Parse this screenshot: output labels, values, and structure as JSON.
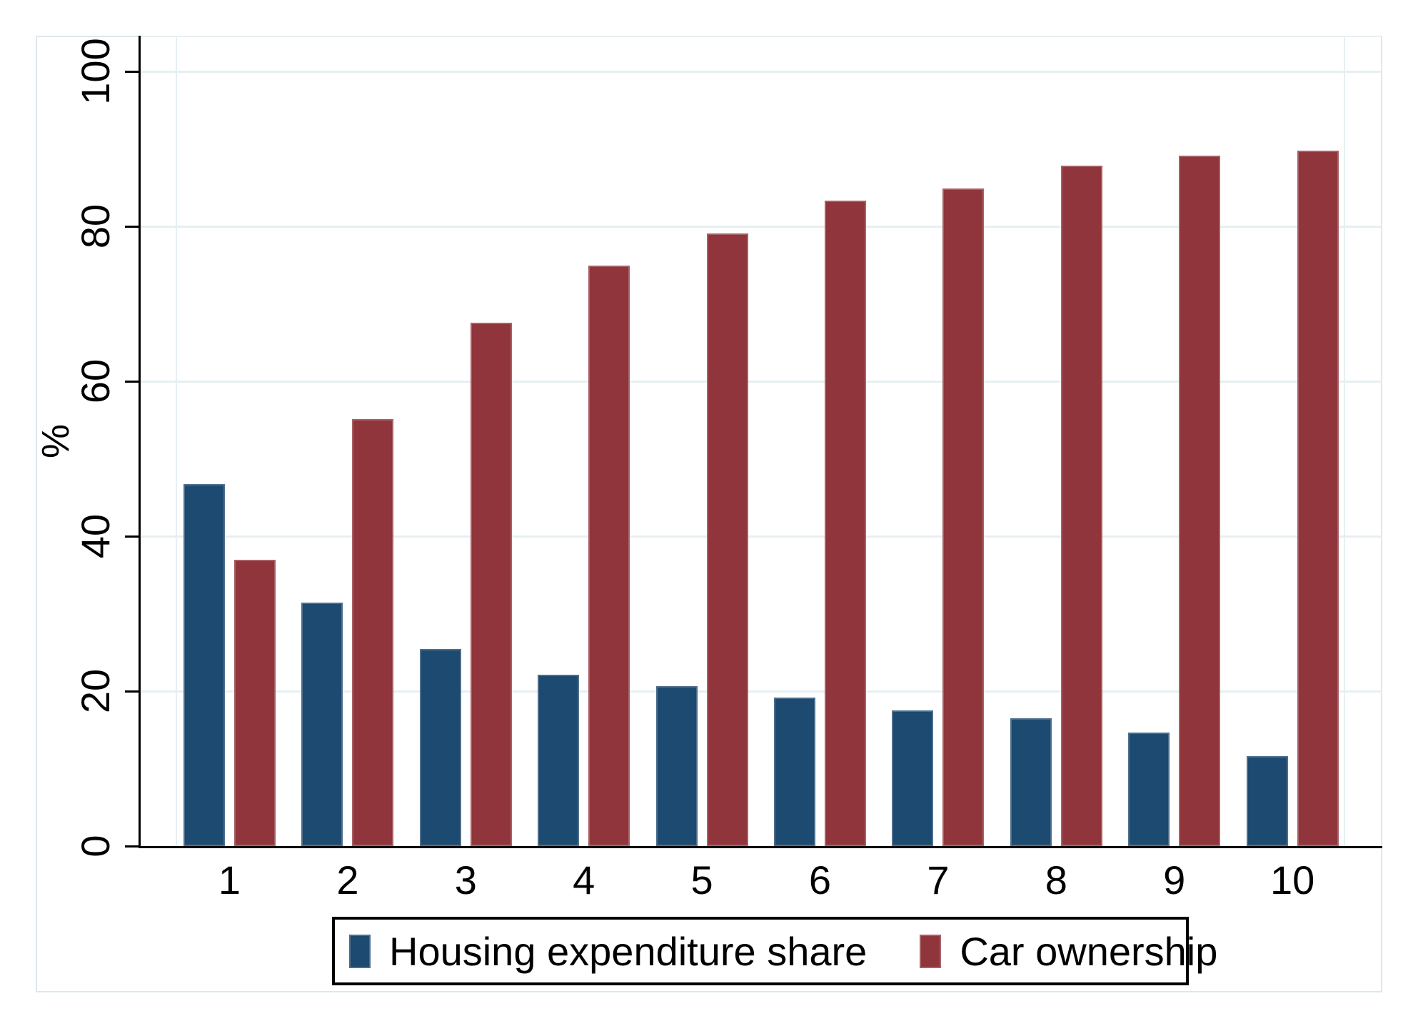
{
  "figure": {
    "y_axis_title": "%",
    "y_tick_labels": [
      "0",
      "20",
      "40",
      "60",
      "80",
      "100"
    ],
    "x_tick_labels": [
      "1",
      "2",
      "3",
      "4",
      "5",
      "6",
      "7",
      "8",
      "9",
      "10"
    ],
    "colors": {
      "housing_bar": "#1C4A70",
      "car_bar": "#90353B",
      "gridline": "#e7eff2",
      "figure_border": "#dce9ed",
      "axis": "#000000",
      "legend_border": "#000000"
    }
  },
  "chart_data": {
    "type": "bar",
    "title": "",
    "xlabel": "",
    "ylabel": "%",
    "categories": [
      "1",
      "2",
      "3",
      "4",
      "5",
      "6",
      "7",
      "8",
      "9",
      "10"
    ],
    "series": [
      {
        "name": "Housing expenditure share",
        "color": "#1C4A70",
        "values": [
          46.7,
          31.4,
          25.4,
          22.1,
          20.6,
          19.2,
          17.5,
          16.5,
          14.7,
          11.6
        ]
      },
      {
        "name": "Car ownership",
        "color": "#90353B",
        "values": [
          37.0,
          55.1,
          67.6,
          74.9,
          79.1,
          83.3,
          84.9,
          87.8,
          89.1,
          89.8
        ]
      }
    ],
    "ylim": [
      0,
      104.6
    ],
    "yticks": [
      0,
      20,
      40,
      60,
      80,
      100
    ],
    "grid": "horizontal",
    "legend_position": "bottom"
  }
}
